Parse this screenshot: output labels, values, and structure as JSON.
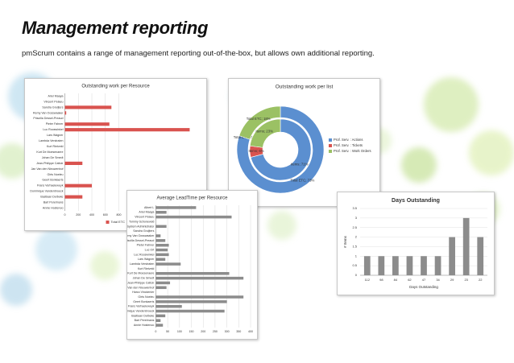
{
  "header": {
    "title": "Management reporting",
    "subtitle": "pmScrum contains a range of management reporting out-of-the-box, but allows own additional reporting."
  },
  "chart_data": [
    {
      "type": "hbar",
      "title": "Outstanding work per Resource",
      "categories": [
        "Ariel Maaya",
        "Vincent Pelaeu",
        "Sandra Gruijters",
        "Remy Van Oosswaaker",
        "Priscilla Dessel-Preaud",
        "Pieter Fahner",
        "Luc Rooswinkel",
        "Lars Wagner",
        "Lambda Verstraten",
        "Kurt Rietveld",
        "Kurt De Moesenaere",
        "Johan De Smedt",
        "Jean-Philippe Cattoir",
        "Jan Van den Nieuwenhof",
        "Girts Noeleu",
        "Geert Bonkaerts",
        "Frans Verhaeleweyk",
        "Dominique Vandenbroeck",
        "Bastiaan Delbeke",
        "Bart Perelmans",
        "Annie Hostenoo"
      ],
      "series": [
        {
          "name": "Total ETC",
          "color": "#d9534f",
          "values": [
            0,
            0,
            690,
            20,
            0,
            660,
            1850,
            0,
            0,
            0,
            0,
            0,
            260,
            0,
            0,
            0,
            400,
            0,
            260,
            0,
            0
          ]
        }
      ],
      "xlim": [
        0,
        2000
      ],
      "xticks": [
        0,
        200,
        400,
        600,
        800
      ],
      "grid": true
    },
    {
      "type": "donut",
      "title": "Outstanding work per list",
      "categories": [
        "Prof. Serv. : Actions",
        "Prof. Serv. : Tickets",
        "Prof. Serv. : Work Orders"
      ],
      "colors": [
        "#5b8fd0",
        "#d9534f",
        "#9bc164"
      ],
      "series": [
        {
          "values": [
            73,
            0,
            18
          ],
          "value_labels": [
            "Total ETC; 73%",
            "Total ETC; 0%",
            "Total ETC; 18%"
          ]
        },
        {
          "values": [
            71,
            6,
            23
          ],
          "value_labels": [
            "Items; 71%",
            "Items; 6%",
            "Items; 23%"
          ]
        }
      ]
    },
    {
      "type": "hbar",
      "title": "Average LeadTime per Resource",
      "categories": [
        "Albert L",
        "Ariel Maaya",
        "Vincent Pelaeu",
        "Tommy Schoneveld",
        "System Administrator",
        "Sandra Gruijters",
        "Remy Van Oosswaaker",
        "Priscilla Dessel-Preaud",
        "Pieter Fahner",
        "Luc Ort",
        "Luc Rooswinkel",
        "Lars Wagner",
        "Lambda Verstraten",
        "Kurt Rietveld",
        "Kurt De Moesenaere",
        "Johan De Smedt",
        "Jean-Philippe Cattoir",
        "Jan Van den Nieuwenhof",
        "Harco Vinckenier",
        "Girts Noeleu",
        "Geert Bonkaerts",
        "Frans Verhaeleweyk",
        "Dominique Vandenbroeck",
        "Bastiaan Delbeke",
        "Bart Perelmans",
        "Annie Hostenoo"
      ],
      "values": [
        170,
        45,
        320,
        0,
        45,
        0,
        20,
        40,
        55,
        50,
        55,
        40,
        105,
        0,
        310,
        370,
        60,
        45,
        0,
        370,
        300,
        110,
        290,
        40,
        20,
        30
      ],
      "color": "#8c8c8c",
      "xlim": [
        0,
        400
      ],
      "xticks": [
        0,
        50,
        100,
        150,
        200,
        250,
        300,
        350,
        400
      ],
      "grid": true
    },
    {
      "type": "bar",
      "title": "Days Outstanding",
      "ylabel": "# Items",
      "xlabel": "Days Outstanding",
      "categories": [
        "112",
        "98",
        "84",
        "62",
        "47",
        "34",
        "29",
        "23",
        "22"
      ],
      "values": [
        1,
        1,
        1,
        1,
        1,
        1,
        2,
        3,
        2
      ],
      "color": "#8c8c8c",
      "ylim": [
        0,
        3.5
      ],
      "yticks": [
        0,
        0.5,
        1,
        1.5,
        2,
        2.5,
        3,
        3.5
      ],
      "grid": true
    }
  ]
}
